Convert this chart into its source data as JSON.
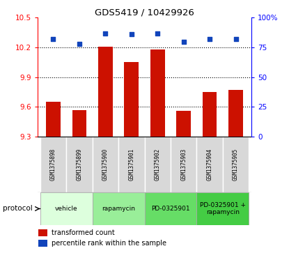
{
  "title": "GDS5419 / 10429926",
  "samples": [
    "GSM1375898",
    "GSM1375899",
    "GSM1375900",
    "GSM1375901",
    "GSM1375902",
    "GSM1375903",
    "GSM1375904",
    "GSM1375905"
  ],
  "red_values": [
    9.65,
    9.57,
    10.21,
    10.05,
    10.18,
    9.56,
    9.75,
    9.77
  ],
  "blue_values": [
    82,
    78,
    87,
    86,
    87,
    80,
    82,
    82
  ],
  "ylim_left": [
    9.3,
    10.5
  ],
  "ylim_right": [
    0,
    100
  ],
  "yticks_left": [
    9.3,
    9.6,
    9.9,
    10.2,
    10.5
  ],
  "yticks_right": [
    0,
    25,
    50,
    75,
    100
  ],
  "ytick_labels_right": [
    "0",
    "25",
    "50",
    "75",
    "100%"
  ],
  "hlines": [
    9.6,
    9.9,
    10.2
  ],
  "bar_color": "#cc1100",
  "dot_color": "#1144bb",
  "protocols": [
    {
      "label": "vehicle",
      "start": 0,
      "end": 2,
      "color": "#ddffdd"
    },
    {
      "label": "rapamycin",
      "start": 2,
      "end": 4,
      "color": "#99ee99"
    },
    {
      "label": "PD-0325901",
      "start": 4,
      "end": 6,
      "color": "#66dd66"
    },
    {
      "label": "PD-0325901 +\nrapamycin",
      "start": 6,
      "end": 8,
      "color": "#44cc44"
    }
  ],
  "legend_red": "transformed count",
  "legend_blue": "percentile rank within the sample",
  "protocol_label": "protocol",
  "sample_box_color": "#d8d8d8",
  "plot_bg": "#ffffff"
}
